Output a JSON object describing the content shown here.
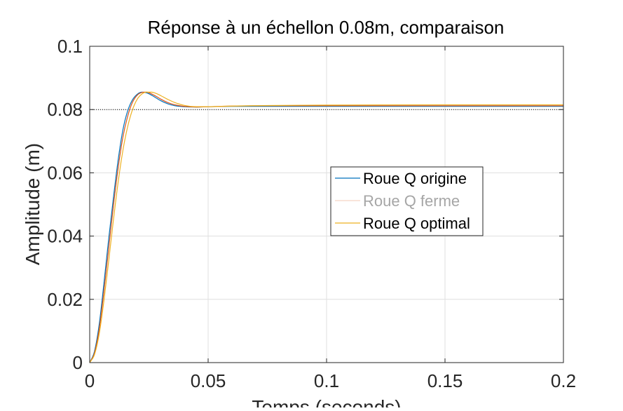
{
  "chart_data": {
    "type": "line",
    "title": "Réponse à un échellon 0.08m, comparaison",
    "xlabel": "Temps (seconds)",
    "ylabel": "Amplitude (m)",
    "xlim": [
      0,
      0.2
    ],
    "ylim": [
      0,
      0.1
    ],
    "xticks": [
      0,
      0.05,
      0.1,
      0.15,
      0.2
    ],
    "yticks": [
      0,
      0.02,
      0.04,
      0.06,
      0.08,
      0.1
    ],
    "xtick_labels": [
      "0",
      "0.05",
      "0.1",
      "0.15",
      "0.2"
    ],
    "ytick_labels": [
      "0",
      "0.02",
      "0.04",
      "0.06",
      "0.08",
      "0.1"
    ],
    "grid": true,
    "legend_position": "center-right",
    "reference_line": {
      "y": 0.08,
      "style": "dotted",
      "color": "#000000"
    },
    "series": [
      {
        "name": "Roue Q origine",
        "color": "#0072BD",
        "x": [
          0,
          0.002,
          0.004,
          0.006,
          0.008,
          0.01,
          0.012,
          0.014,
          0.016,
          0.018,
          0.02,
          0.022,
          0.024,
          0.026,
          0.028,
          0.03,
          0.033,
          0.036,
          0.04,
          0.045,
          0.05,
          0.06,
          0.08,
          0.1,
          0.15,
          0.2
        ],
        "y": [
          0,
          0.0035,
          0.012,
          0.025,
          0.039,
          0.052,
          0.064,
          0.0735,
          0.0795,
          0.083,
          0.0848,
          0.0855,
          0.0853,
          0.0846,
          0.0837,
          0.0828,
          0.0818,
          0.0812,
          0.0809,
          0.0808,
          0.0809,
          0.081,
          0.081,
          0.081,
          0.081,
          0.081
        ]
      },
      {
        "name": "Roue Q ferme",
        "color": "#D95319",
        "x": [
          0,
          0.002,
          0.004,
          0.006,
          0.008,
          0.01,
          0.012,
          0.014,
          0.016,
          0.018,
          0.02,
          0.022,
          0.024,
          0.026,
          0.028,
          0.03,
          0.033,
          0.036,
          0.04,
          0.045,
          0.05,
          0.06,
          0.08,
          0.1,
          0.15,
          0.2
        ],
        "y": [
          0,
          0.003,
          0.0105,
          0.0225,
          0.036,
          0.0495,
          0.0615,
          0.0712,
          0.0778,
          0.0822,
          0.0845,
          0.0854,
          0.0855,
          0.085,
          0.0842,
          0.0833,
          0.0822,
          0.0815,
          0.081,
          0.0808,
          0.0809,
          0.0811,
          0.0812,
          0.0812,
          0.0812,
          0.0812
        ]
      },
      {
        "name": "Roue Q optimal",
        "color": "#EDB120",
        "x": [
          0,
          0.002,
          0.004,
          0.006,
          0.008,
          0.01,
          0.012,
          0.014,
          0.016,
          0.018,
          0.02,
          0.022,
          0.024,
          0.026,
          0.028,
          0.03,
          0.033,
          0.036,
          0.04,
          0.045,
          0.05,
          0.06,
          0.08,
          0.1,
          0.15,
          0.2
        ],
        "y": [
          0,
          0.0025,
          0.009,
          0.0195,
          0.032,
          0.045,
          0.057,
          0.067,
          0.0745,
          0.0798,
          0.0832,
          0.0849,
          0.0855,
          0.0855,
          0.0851,
          0.0844,
          0.0832,
          0.0822,
          0.0813,
          0.0809,
          0.0809,
          0.0811,
          0.0813,
          0.0814,
          0.0815,
          0.0815
        ]
      }
    ]
  }
}
